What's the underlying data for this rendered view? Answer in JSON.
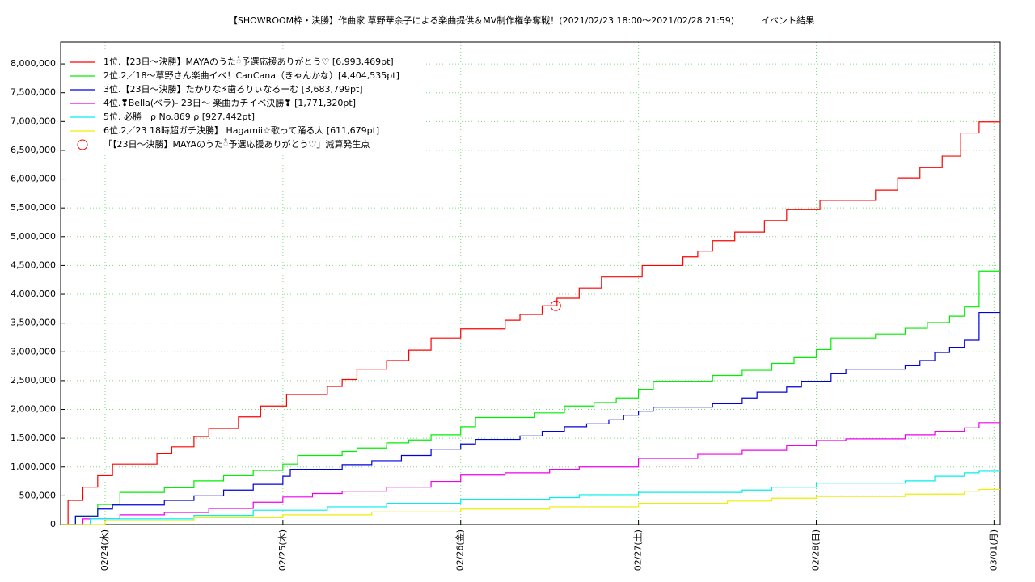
{
  "chart_data": {
    "type": "line",
    "step": true,
    "title": "【SHOWROOM枠・決勝】作曲家 草野華余子による楽曲提供＆MV制作権争奪戦！(2021/02/23 18:00〜2021/02/28 21:59)　　　イベント結果",
    "xlim": [
      "02/23 18:00",
      "03/01 00:50"
    ],
    "xticks": [
      {
        "value": "02/24 00:00",
        "label": "02/24(水)"
      },
      {
        "value": "02/25 00:00",
        "label": "02/25(木)"
      },
      {
        "value": "02/26 00:00",
        "label": "02/26(金)"
      },
      {
        "value": "02/27 00:00",
        "label": "02/27(土)"
      },
      {
        "value": "02/28 00:00",
        "label": "02/28(日)"
      },
      {
        "value": "03/01 00:00",
        "label": "03/01(月)"
      }
    ],
    "ylim": [
      0,
      8380000
    ],
    "yticks": [
      0,
      {
        "value": 500000,
        "label": "500,000"
      },
      {
        "value": 1000000,
        "label": "1,000,000"
      },
      {
        "value": 1500000,
        "label": "1,500,000"
      },
      {
        "value": 2000000,
        "label": "2,000,000"
      },
      {
        "value": 2500000,
        "label": "2,500,000"
      },
      {
        "value": 3000000,
        "label": "3,000,000"
      },
      {
        "value": 3500000,
        "label": "3,500,000"
      },
      {
        "value": 4000000,
        "label": "4,000,000"
      },
      {
        "value": 4500000,
        "label": "4,500,000"
      },
      {
        "value": 5000000,
        "label": "5,000,000"
      },
      {
        "value": 5500000,
        "label": "5,500,000"
      },
      {
        "value": 6000000,
        "label": "6,000,000"
      },
      {
        "value": 6500000,
        "label": "6,500,000"
      },
      {
        "value": 7000000,
        "label": "7,000,000"
      },
      {
        "value": 7500000,
        "label": "7,500,000"
      },
      {
        "value": 8000000,
        "label": "8,000,000"
      }
    ],
    "grid": true,
    "legend": "upper left",
    "series": [
      {
        "name": "1位.【23日〜決勝】MAYAのうた៓予選応援ありがとう♡ [6,993,469pt]",
        "color": "#ff0000",
        "x": [
          "02/23 18:00",
          "02/23 19:00",
          "02/23 21:00",
          "02/23 23:00",
          "02/24 01:00",
          "02/24 07:00",
          "02/24 09:00",
          "02/24 12:00",
          "02/24 14:00",
          "02/24 18:00",
          "02/24 21:00",
          "02/25 00:30",
          "02/25 06:00",
          "02/25 08:00",
          "02/25 10:00",
          "02/25 14:00",
          "02/25 17:00",
          "02/25 20:00",
          "02/26 00:00",
          "02/26 06:00",
          "02/26 08:00",
          "02/26 11:00",
          "02/26 13:00",
          "02/26 16:00",
          "02/26 19:00",
          "02/27 00:30",
          "02/27 06:00",
          "02/27 08:00",
          "02/27 10:00",
          "02/27 13:00",
          "02/27 17:00",
          "02/27 20:00",
          "02/28 00:30",
          "02/28 08:00",
          "02/28 11:00",
          "02/28 14:00",
          "02/28 17:00",
          "02/28 19:30",
          "02/28 21:59"
        ],
        "values": [
          0,
          420000,
          650000,
          850000,
          1050000,
          1230000,
          1350000,
          1530000,
          1670000,
          1870000,
          2060000,
          2260000,
          2400000,
          2520000,
          2700000,
          2850000,
          3030000,
          3240000,
          3400000,
          3550000,
          3650000,
          3800000,
          3930000,
          4110000,
          4300000,
          4500000,
          4650000,
          4750000,
          4930000,
          5080000,
          5280000,
          5470000,
          5630000,
          5810000,
          6020000,
          6200000,
          6400000,
          6800000,
          6993469
        ]
      },
      {
        "name": "2位.2／18〜草野さん楽曲イベ！CanCana（きゃんかな）[4,404,535pt]",
        "color": "#00ee00",
        "x": [
          "02/23 18:00",
          "02/23 20:00",
          "02/23 23:00",
          "02/24 02:00",
          "02/24 08:00",
          "02/24 12:00",
          "02/24 16:00",
          "02/24 20:00",
          "02/25 00:00",
          "02/25 02:00",
          "02/25 08:00",
          "02/25 10:00",
          "02/25 14:00",
          "02/25 17:00",
          "02/25 20:00",
          "02/26 00:00",
          "02/26 02:00",
          "02/26 10:00",
          "02/26 14:00",
          "02/26 18:00",
          "02/26 21:00",
          "02/27 00:00",
          "02/27 02:00",
          "02/27 10:00",
          "02/27 14:00",
          "02/27 18:00",
          "02/27 21:00",
          "02/28 00:00",
          "02/28 02:00",
          "02/28 08:00",
          "02/28 12:00",
          "02/28 15:00",
          "02/28 18:00",
          "02/28 20:00",
          "02/28 21:59"
        ],
        "values": [
          0,
          150000,
          350000,
          560000,
          640000,
          760000,
          850000,
          940000,
          1050000,
          1200000,
          1270000,
          1330000,
          1420000,
          1470000,
          1560000,
          1700000,
          1860000,
          1940000,
          2060000,
          2120000,
          2200000,
          2350000,
          2490000,
          2590000,
          2680000,
          2800000,
          2900000,
          3040000,
          3240000,
          3310000,
          3410000,
          3510000,
          3620000,
          3780000,
          4404535
        ]
      },
      {
        "name": "3位.【23日〜決勝】たかりな⚡歯ろりぃなるーむ [3,683,799pt]",
        "color": "#0000dd",
        "x": [
          "02/23 18:00",
          "02/23 20:00",
          "02/23 23:00",
          "02/24 01:00",
          "02/24 08:00",
          "02/24 12:00",
          "02/24 16:00",
          "02/24 20:00",
          "02/25 00:00",
          "02/25 01:00",
          "02/25 08:00",
          "02/25 12:00",
          "02/25 16:00",
          "02/25 20:00",
          "02/26 00:00",
          "02/26 02:00",
          "02/26 08:00",
          "02/26 11:00",
          "02/26 14:00",
          "02/26 17:00",
          "02/26 20:00",
          "02/26 22:00",
          "02/27 00:00",
          "02/27 02:00",
          "02/27 10:00",
          "02/27 14:00",
          "02/27 16:00",
          "02/27 20:00",
          "02/27 22:00",
          "02/28 02:00",
          "02/28 04:00",
          "02/28 12:00",
          "02/28 14:00",
          "02/28 16:00",
          "02/28 18:00",
          "02/28 20:00",
          "02/28 21:59"
        ],
        "values": [
          0,
          150000,
          270000,
          340000,
          420000,
          500000,
          600000,
          700000,
          840000,
          960000,
          1040000,
          1110000,
          1200000,
          1310000,
          1400000,
          1480000,
          1540000,
          1620000,
          1700000,
          1750000,
          1820000,
          1900000,
          1970000,
          2040000,
          2100000,
          2200000,
          2300000,
          2390000,
          2490000,
          2620000,
          2700000,
          2760000,
          2850000,
          2990000,
          3080000,
          3200000,
          3683799
        ]
      },
      {
        "name": "4位.❣Bella(ベラ)- 23日〜 楽曲カチイベ決勝❣ [1,771,320pt]",
        "color": "#ee00ee",
        "x": [
          "02/23 18:00",
          "02/23 21:00",
          "02/24 02:00",
          "02/24 08:00",
          "02/24 14:00",
          "02/24 20:00",
          "02/25 00:00",
          "02/25 04:00",
          "02/25 08:00",
          "02/25 14:00",
          "02/25 20:00",
          "02/26 00:00",
          "02/26 06:00",
          "02/26 12:00",
          "02/26 16:00",
          "02/27 00:00",
          "02/27 08:00",
          "02/27 14:00",
          "02/27 20:00",
          "02/28 00:00",
          "02/28 04:00",
          "02/28 12:00",
          "02/28 16:00",
          "02/28 20:00",
          "02/28 21:59"
        ],
        "values": [
          0,
          100000,
          170000,
          210000,
          280000,
          390000,
          480000,
          540000,
          580000,
          650000,
          750000,
          860000,
          900000,
          960000,
          1000000,
          1150000,
          1220000,
          1290000,
          1370000,
          1460000,
          1490000,
          1560000,
          1620000,
          1680000,
          1771320
        ]
      },
      {
        "name": "5位. 必勝　ρ No.869 ρ [927,442pt]",
        "color": "#00eeee",
        "x": [
          "02/23 18:00",
          "02/23 22:00",
          "02/24 12:00",
          "02/24 20:00",
          "02/25 06:00",
          "02/25 14:00",
          "02/26 00:00",
          "02/26 12:00",
          "02/26 16:00",
          "02/27 00:00",
          "02/27 14:00",
          "02/27 18:00",
          "02/28 00:00",
          "02/28 12:00",
          "02/28 16:00",
          "02/28 20:00",
          "02/28 21:59"
        ],
        "values": [
          0,
          100000,
          160000,
          250000,
          310000,
          370000,
          440000,
          470000,
          520000,
          560000,
          600000,
          650000,
          720000,
          760000,
          840000,
          900000,
          927442
        ]
      },
      {
        "name": "6位.2／23 18時超ガチ決勝】 Hagamii☆歌って踊る人 [611,679pt]",
        "color": "#eeee00",
        "x": [
          "02/23 18:00",
          "02/24 00:00",
          "02/24 12:00",
          "02/25 00:00",
          "02/25 12:00",
          "02/26 00:00",
          "02/26 12:00",
          "02/27 00:00",
          "02/27 12:00",
          "02/27 18:00",
          "02/28 00:00",
          "02/28 12:00",
          "02/28 20:00",
          "02/28 21:59"
        ],
        "values": [
          0,
          70000,
          120000,
          170000,
          220000,
          270000,
          310000,
          370000,
          410000,
          460000,
          490000,
          530000,
          580000,
          611679
        ]
      }
    ],
    "marker": {
      "name": "「【23日〜決勝】MAYAのうた៓予選応援ありがとう♡」減算発生点",
      "color": "#ff0000",
      "x": "02/26 12:50",
      "value": 3800000
    }
  }
}
